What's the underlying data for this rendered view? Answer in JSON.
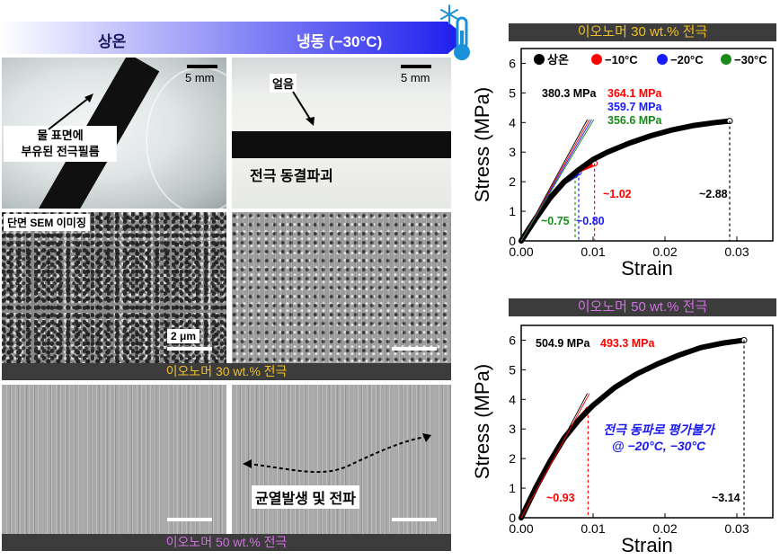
{
  "banner": {
    "left_label": "상온",
    "right_label": "냉동 (−30°C)",
    "icons": [
      "snowflake-icon",
      "thermometer-icon"
    ]
  },
  "photos": {
    "scale_bar_top_left": "5 mm",
    "scale_bar_top_right": "5 mm",
    "annotation_film": "물 표면에\n부유된 전극필름",
    "annotation_ice": "얼음",
    "annotation_fracture": "전극 동결파괴",
    "sem_title": "단면 SEM 이미징",
    "sem_scale": "2 μm",
    "label_30": "이오노머 30 wt.% 전극",
    "label_50": "이오노머 50 wt.% 전극",
    "crack_label": "균열발생 및 전파"
  },
  "colors": {
    "label_30": "#f0c020",
    "label_50": "#d070e0",
    "room": "#000000",
    "m10": "#ff0000",
    "m20": "#1a1aff",
    "m30": "#1a8a1a",
    "banner_start": "#ffffff",
    "banner_end": "#1a1aee"
  },
  "chart_data": [
    {
      "type": "line",
      "title": "이오노머 30 wt.% 전극",
      "xlabel": "Strain",
      "ylabel": "Stress (MPa)",
      "xlim": [
        0.0,
        0.035
      ],
      "ylim": [
        0,
        6.5
      ],
      "xticks": [
        "0.00",
        "0.01",
        "0.02",
        "0.03"
      ],
      "yticks": [
        "0",
        "1",
        "2",
        "3",
        "4",
        "5",
        "6"
      ],
      "legend": [
        "상온",
        "−10°C",
        "−20°C",
        "−30°C"
      ],
      "legend_position": "top",
      "series": [
        {
          "name": "상온",
          "color": "#000000",
          "x": [
            0,
            0.002,
            0.004,
            0.006,
            0.008,
            0.01,
            0.012,
            0.015,
            0.018,
            0.021,
            0.024,
            0.027,
            0.029
          ],
          "y": [
            0,
            0.75,
            1.45,
            2.0,
            2.4,
            2.75,
            3.0,
            3.3,
            3.55,
            3.75,
            3.9,
            4.0,
            4.05
          ]
        },
        {
          "name": "−10°C",
          "color": "#ff0000",
          "x": [
            0,
            0.002,
            0.004,
            0.006,
            0.008,
            0.0102
          ],
          "y": [
            0,
            0.75,
            1.45,
            2.0,
            2.4,
            2.62
          ]
        },
        {
          "name": "−20°C",
          "color": "#1a1aff",
          "x": [
            0,
            0.002,
            0.004,
            0.006,
            0.008
          ],
          "y": [
            0,
            0.75,
            1.45,
            2.0,
            2.32
          ]
        },
        {
          "name": "−30°C",
          "color": "#1a8a1a",
          "x": [
            0,
            0.002,
            0.004,
            0.006,
            0.0075
          ],
          "y": [
            0,
            0.75,
            1.45,
            2.0,
            2.22
          ]
        }
      ],
      "moduli": [
        {
          "text": "380.3 MPa",
          "color": "#000000"
        },
        {
          "text": "364.1 MPa",
          "color": "#ff0000"
        },
        {
          "text": "359.7 MPa",
          "color": "#1a1aff"
        },
        {
          "text": "356.6 MPa",
          "color": "#1a8a1a"
        }
      ],
      "annotations": [
        {
          "text": "~1.02",
          "color": "#ff0000"
        },
        {
          "text": "~2.88",
          "color": "#000000"
        },
        {
          "text": "~0.75",
          "color": "#1a8a1a"
        },
        {
          "text": "~0.80",
          "color": "#1a1aff"
        }
      ]
    },
    {
      "type": "line",
      "title": "이오노머 50 wt.% 전극",
      "xlabel": "Strain",
      "ylabel": "Stress (MPa)",
      "xlim": [
        0.0,
        0.035
      ],
      "ylim": [
        0,
        6.5
      ],
      "xticks": [
        "0.00",
        "0.01",
        "0.02",
        "0.03"
      ],
      "yticks": [
        "0",
        "1",
        "2",
        "3",
        "4",
        "5",
        "6"
      ],
      "series": [
        {
          "name": "상온",
          "color": "#000000",
          "x": [
            0,
            0.002,
            0.004,
            0.006,
            0.008,
            0.01,
            0.013,
            0.016,
            0.019,
            0.022,
            0.025,
            0.028,
            0.031
          ],
          "y": [
            0,
            1.0,
            1.9,
            2.7,
            3.3,
            3.8,
            4.4,
            4.85,
            5.2,
            5.5,
            5.75,
            5.9,
            6.0
          ]
        },
        {
          "name": "−10°C",
          "color": "#ff0000",
          "x": [
            0,
            0.002,
            0.004,
            0.006,
            0.008,
            0.0093
          ],
          "y": [
            0,
            1.0,
            1.9,
            2.7,
            3.3,
            3.65
          ]
        }
      ],
      "moduli": [
        {
          "text": "504.9 MPa",
          "color": "#000000"
        },
        {
          "text": "493.3 MPa",
          "color": "#ff0000"
        }
      ],
      "annotations": [
        {
          "text": "~0.93",
          "color": "#ff0000"
        },
        {
          "text": "~3.14",
          "color": "#000000"
        },
        {
          "text": "전극 동파로 평가불가\n@ −20°C, −30°C",
          "color": "#1a1aee"
        }
      ]
    }
  ]
}
